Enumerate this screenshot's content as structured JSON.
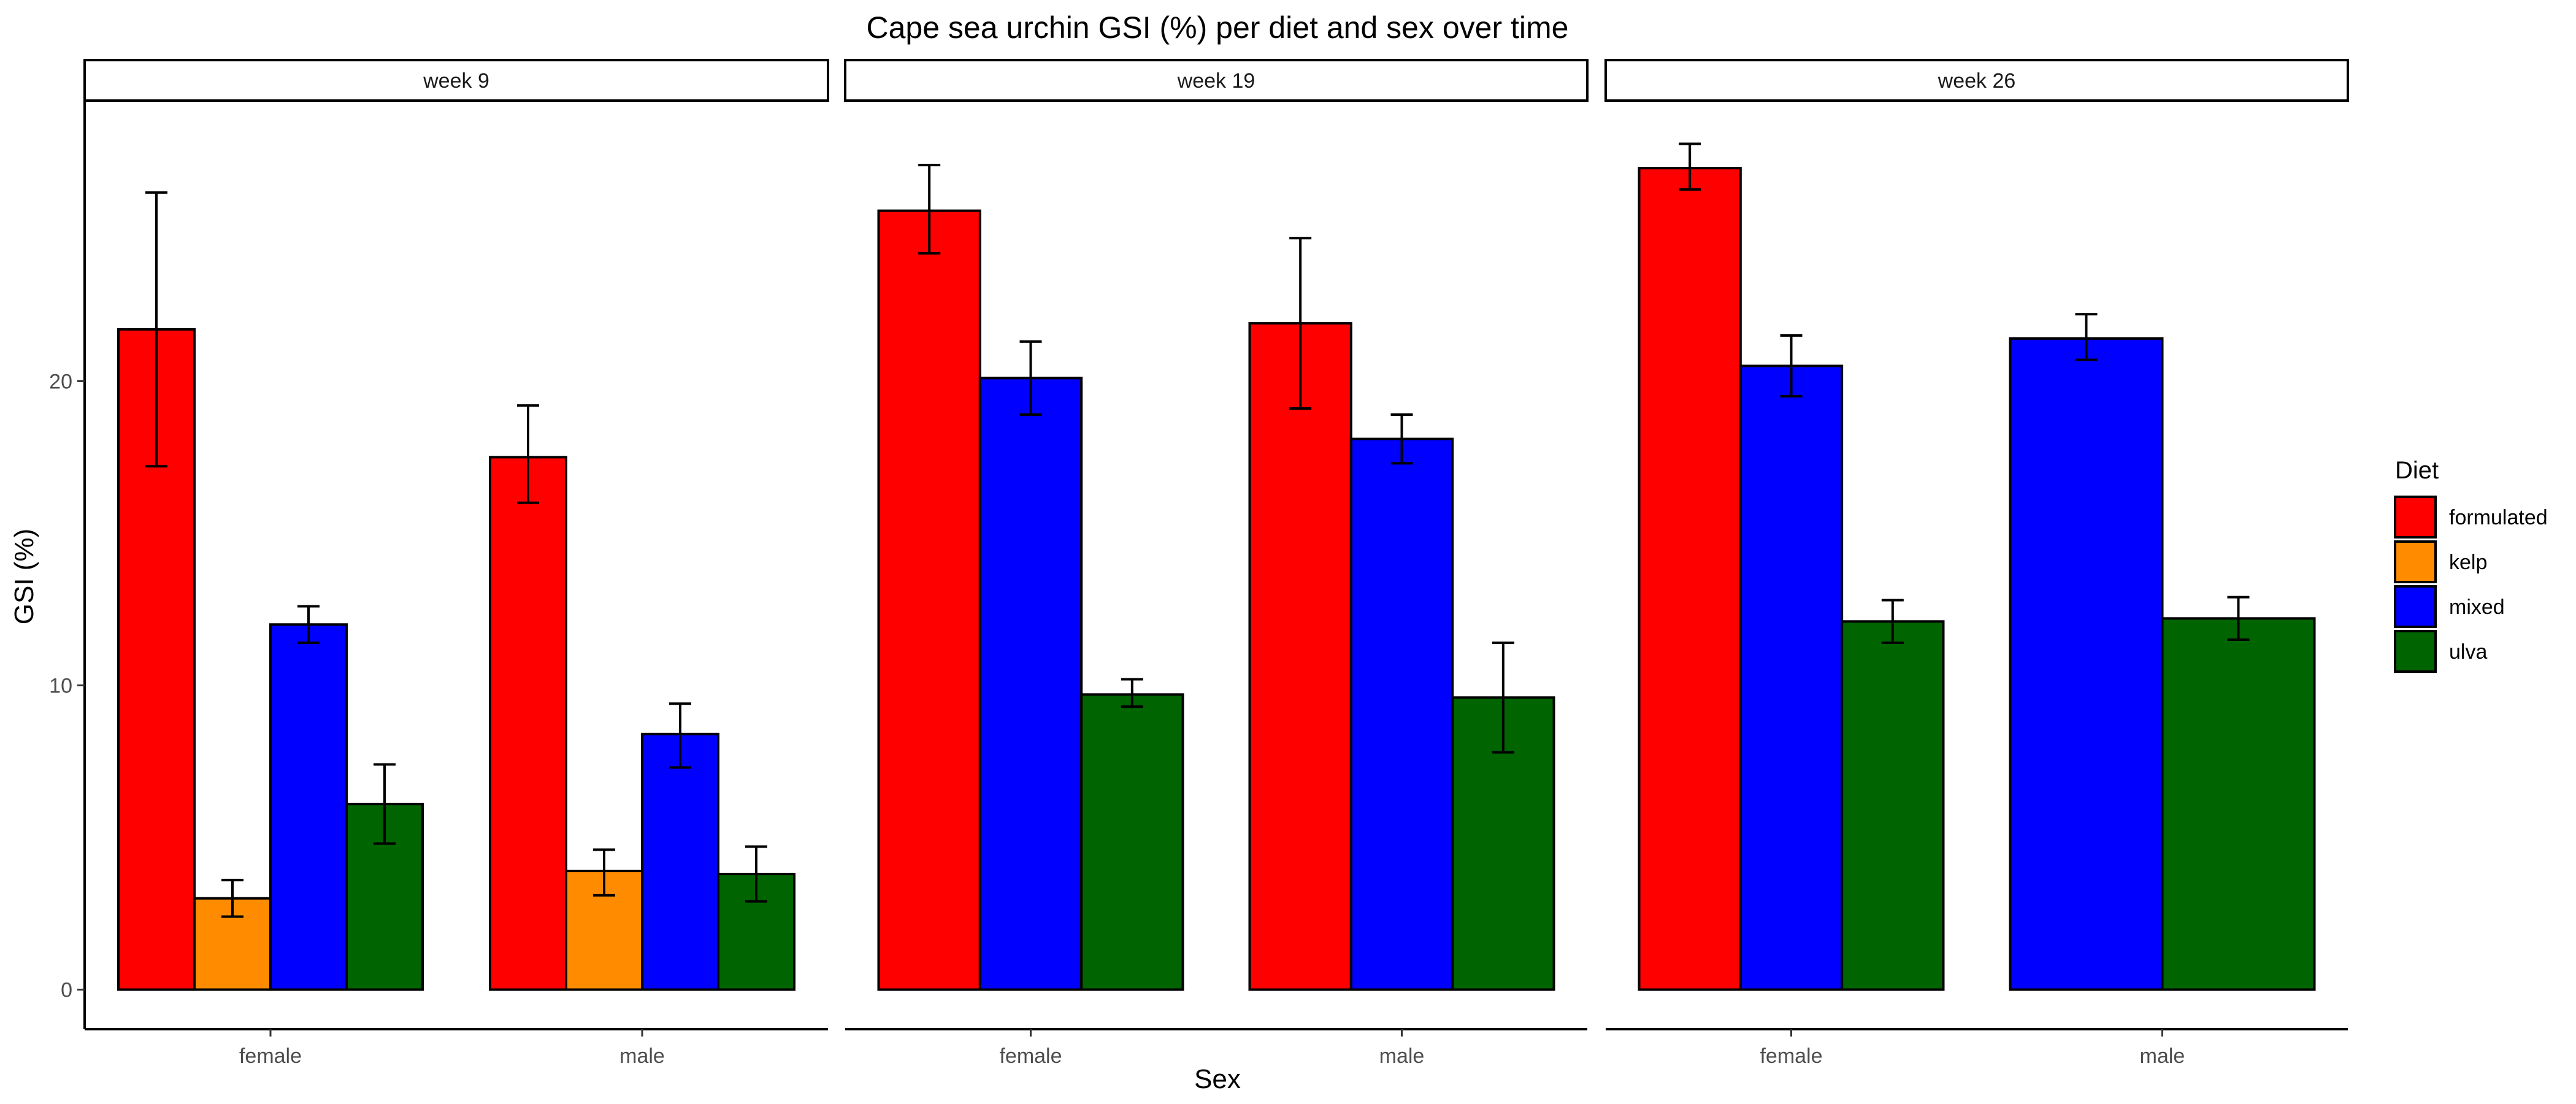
{
  "chart_data": {
    "type": "bar",
    "title": "Cape sea urchin GSI (%) per diet and sex over time",
    "xlabel": "Sex",
    "ylabel": "GSI (%)",
    "ylim": [
      -1.3,
      29.2
    ],
    "yticks": [
      0,
      10,
      20
    ],
    "legend": {
      "title": "Diet",
      "position": "right",
      "entries": [
        "formulated",
        "kelp",
        "mixed",
        "ulva"
      ]
    },
    "colors": {
      "formulated": "#ff0000",
      "kelp": "#ff8c00",
      "mixed": "#0000ff",
      "ulva": "#006400"
    },
    "facets": [
      {
        "label": "week 9",
        "groups": [
          {
            "sex": "female",
            "bars": [
              {
                "diet": "formulated",
                "value": 21.7,
                "low": 17.2,
                "high": 26.2
              },
              {
                "diet": "kelp",
                "value": 3.0,
                "low": 2.4,
                "high": 3.6
              },
              {
                "diet": "mixed",
                "value": 12.0,
                "low": 11.4,
                "high": 12.6
              },
              {
                "diet": "ulva",
                "value": 6.1,
                "low": 4.8,
                "high": 7.4
              }
            ]
          },
          {
            "sex": "male",
            "bars": [
              {
                "diet": "formulated",
                "value": 17.5,
                "low": 16.0,
                "high": 19.2
              },
              {
                "diet": "kelp",
                "value": 3.9,
                "low": 3.1,
                "high": 4.6
              },
              {
                "diet": "mixed",
                "value": 8.4,
                "low": 7.3,
                "high": 9.4
              },
              {
                "diet": "ulva",
                "value": 3.8,
                "low": 2.9,
                "high": 4.7
              }
            ]
          }
        ]
      },
      {
        "label": "week 19",
        "groups": [
          {
            "sex": "female",
            "bars": [
              {
                "diet": "formulated",
                "value": 25.6,
                "low": 24.2,
                "high": 27.1
              },
              {
                "diet": "mixed",
                "value": 20.1,
                "low": 18.9,
                "high": 21.3
              },
              {
                "diet": "ulva",
                "value": 9.7,
                "low": 9.3,
                "high": 10.2
              }
            ]
          },
          {
            "sex": "male",
            "bars": [
              {
                "diet": "formulated",
                "value": 21.9,
                "low": 19.1,
                "high": 24.7
              },
              {
                "diet": "mixed",
                "value": 18.1,
                "low": 17.3,
                "high": 18.9
              },
              {
                "diet": "ulva",
                "value": 9.6,
                "low": 7.8,
                "high": 11.4
              }
            ]
          }
        ]
      },
      {
        "label": "week 26",
        "groups": [
          {
            "sex": "female",
            "bars": [
              {
                "diet": "formulated",
                "value": 27.0,
                "low": 26.3,
                "high": 27.8
              },
              {
                "diet": "mixed",
                "value": 20.5,
                "low": 19.5,
                "high": 21.5
              },
              {
                "diet": "ulva",
                "value": 12.1,
                "low": 11.4,
                "high": 12.8
              }
            ]
          },
          {
            "sex": "male",
            "bars": [
              {
                "diet": "mixed",
                "value": 21.4,
                "low": 20.7,
                "high": 22.2
              },
              {
                "diet": "ulva",
                "value": 12.2,
                "low": 11.5,
                "high": 12.9
              }
            ]
          }
        ]
      }
    ]
  }
}
